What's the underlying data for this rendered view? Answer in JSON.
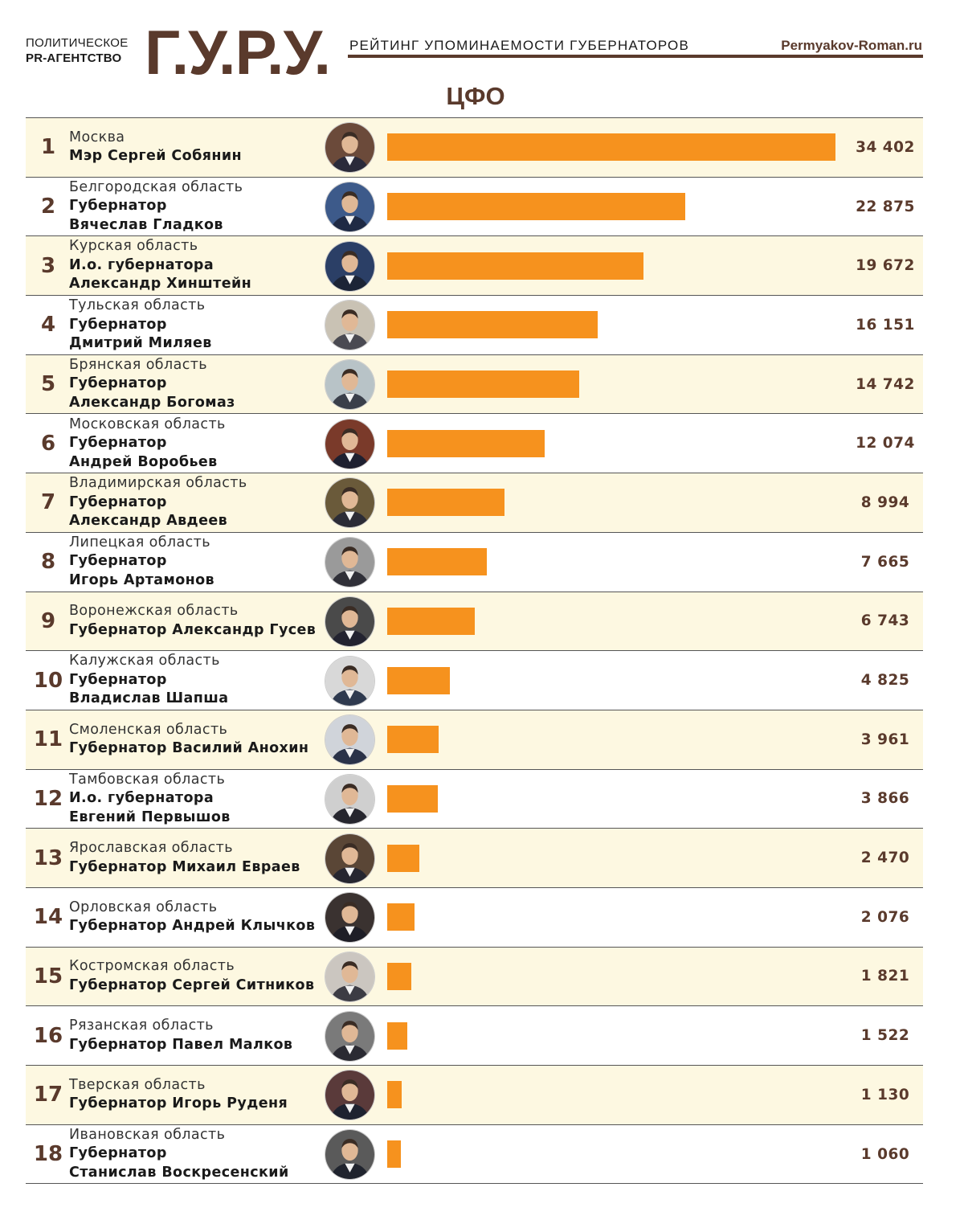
{
  "header": {
    "agency_line1": "ПОЛИТИЧЕСКОЕ",
    "agency_line2": "PR-АГЕНТСТВО",
    "logo": "Г.У.Р.У.",
    "rating_title": "РЕЙТИНГ УПОМИНАЕМОСТИ ГУБЕРНАТОРОВ",
    "site": "Permyakov-Roman.ru"
  },
  "colors": {
    "bar": "#f6921e",
    "accent_brown": "#5a3a2c",
    "row_shaded": "#fdf8e1"
  },
  "chart_data": {
    "type": "bar",
    "orientation": "horizontal",
    "title": "ЦФО",
    "xlim": [
      0,
      34402
    ],
    "rows": [
      {
        "rank": "1",
        "region": "Москва",
        "person": [
          "Мэр Сергей Собянин"
        ],
        "value": 34402,
        "value_label": "34 402"
      },
      {
        "rank": "2",
        "region": "Белгородская область",
        "person": [
          "Губернатор",
          "Вячеслав Гладков"
        ],
        "value": 22875,
        "value_label": "22 875"
      },
      {
        "rank": "3",
        "region": "Курская область",
        "person": [
          "И.о. губернатора",
          "Александр Хинштейн"
        ],
        "value": 19672,
        "value_label": "19 672"
      },
      {
        "rank": "4",
        "region": "Тульская область",
        "person": [
          "Губернатор",
          "Дмитрий Миляев"
        ],
        "value": 16151,
        "value_label": "16 151"
      },
      {
        "rank": "5",
        "region": "Брянская область",
        "person": [
          "Губернатор",
          "Александр Богомаз"
        ],
        "value": 14742,
        "value_label": "14 742"
      },
      {
        "rank": "6",
        "region": "Московская область",
        "person": [
          "Губернатор",
          "Андрей Воробьев"
        ],
        "value": 12074,
        "value_label": "12 074"
      },
      {
        "rank": "7",
        "region": "Владимирская область",
        "person": [
          "Губернатор",
          "Александр Авдеев"
        ],
        "value": 8994,
        "value_label": "8 994"
      },
      {
        "rank": "8",
        "region": "Липецкая область",
        "person": [
          "Губернатор",
          "Игорь Артамонов"
        ],
        "value": 7665,
        "value_label": "7 665"
      },
      {
        "rank": "9",
        "region": "Воронежская область",
        "person": [
          "Губернатор Александр Гусев"
        ],
        "value": 6743,
        "value_label": "6 743"
      },
      {
        "rank": "10",
        "region": "Калужская область",
        "person": [
          "Губернатор",
          "Владислав Шапша"
        ],
        "value": 4825,
        "value_label": "4 825"
      },
      {
        "rank": "11",
        "region": "Смоленская область",
        "person": [
          "Губернатор Василий Анохин"
        ],
        "value": 3961,
        "value_label": "3 961"
      },
      {
        "rank": "12",
        "region": "Тамбовская область",
        "person": [
          "И.о. губернатора",
          "Евгений Первышов"
        ],
        "value": 3866,
        "value_label": "3 866"
      },
      {
        "rank": "13",
        "region": "Ярославская область",
        "person": [
          "Губернатор Михаил Евраев"
        ],
        "value": 2470,
        "value_label": "2 470"
      },
      {
        "rank": "14",
        "region": "Орловская область",
        "person": [
          "Губернатор Андрей Клычков"
        ],
        "value": 2076,
        "value_label": "2 076"
      },
      {
        "rank": "15",
        "region": "Костромская область",
        "person": [
          "Губернатор Сергей Ситников"
        ],
        "value": 1821,
        "value_label": "1 821"
      },
      {
        "rank": "16",
        "region": "Рязанская область",
        "person": [
          "Губернатор Павел Малков"
        ],
        "value": 1522,
        "value_label": "1 522"
      },
      {
        "rank": "17",
        "region": "Тверская область",
        "person": [
          "Губернатор Игорь Руденя"
        ],
        "value": 1130,
        "value_label": "1 130"
      },
      {
        "rank": "18",
        "region": "Ивановская область",
        "person": [
          "Губернатор",
          "Станислав Воскресенский"
        ],
        "value": 1060,
        "value_label": "1 060"
      }
    ]
  }
}
